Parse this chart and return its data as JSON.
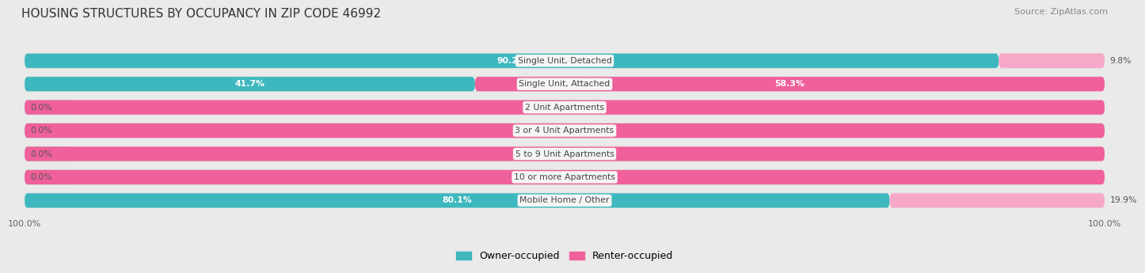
{
  "title": "HOUSING STRUCTURES BY OCCUPANCY IN ZIP CODE 46992",
  "source": "Source: ZipAtlas.com",
  "categories": [
    "Single Unit, Detached",
    "Single Unit, Attached",
    "2 Unit Apartments",
    "3 or 4 Unit Apartments",
    "5 to 9 Unit Apartments",
    "10 or more Apartments",
    "Mobile Home / Other"
  ],
  "owner_pct": [
    90.2,
    41.7,
    0.0,
    0.0,
    0.0,
    0.0,
    80.1
  ],
  "renter_pct": [
    9.8,
    58.3,
    100.0,
    100.0,
    100.0,
    100.0,
    19.9
  ],
  "owner_color": "#3db8be",
  "renter_color_full": "#f0609a",
  "renter_color_light": "#f7a8c8",
  "owner_color_light": "#a0dce0",
  "background_color": "#eaeaea",
  "bar_bg_color": "#f5f5f5",
  "bar_shadow_color": "#d0d0d0",
  "title_fontsize": 11,
  "source_fontsize": 8,
  "tick_fontsize": 8,
  "legend_fontsize": 9
}
